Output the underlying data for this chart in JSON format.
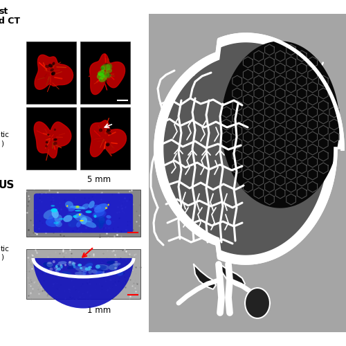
{
  "bg_gray": "#a8a8a8",
  "white": "#ffffff",
  "black": "#000000",
  "dark_gray": "#555555",
  "med_gray": "#707070",
  "node_inner": "#5a5a5a",
  "tumor_black": "#0a0a0a",
  "tumor_outline": "#404040",
  "fig_w": 5.0,
  "fig_h": 5.0,
  "dpi": 100,
  "left_labels": {
    "ct_line1": "st",
    "ct_line2": "d CT",
    "us_line1": "US",
    "meta_line1": "tic",
    "meta_line2": ")"
  }
}
